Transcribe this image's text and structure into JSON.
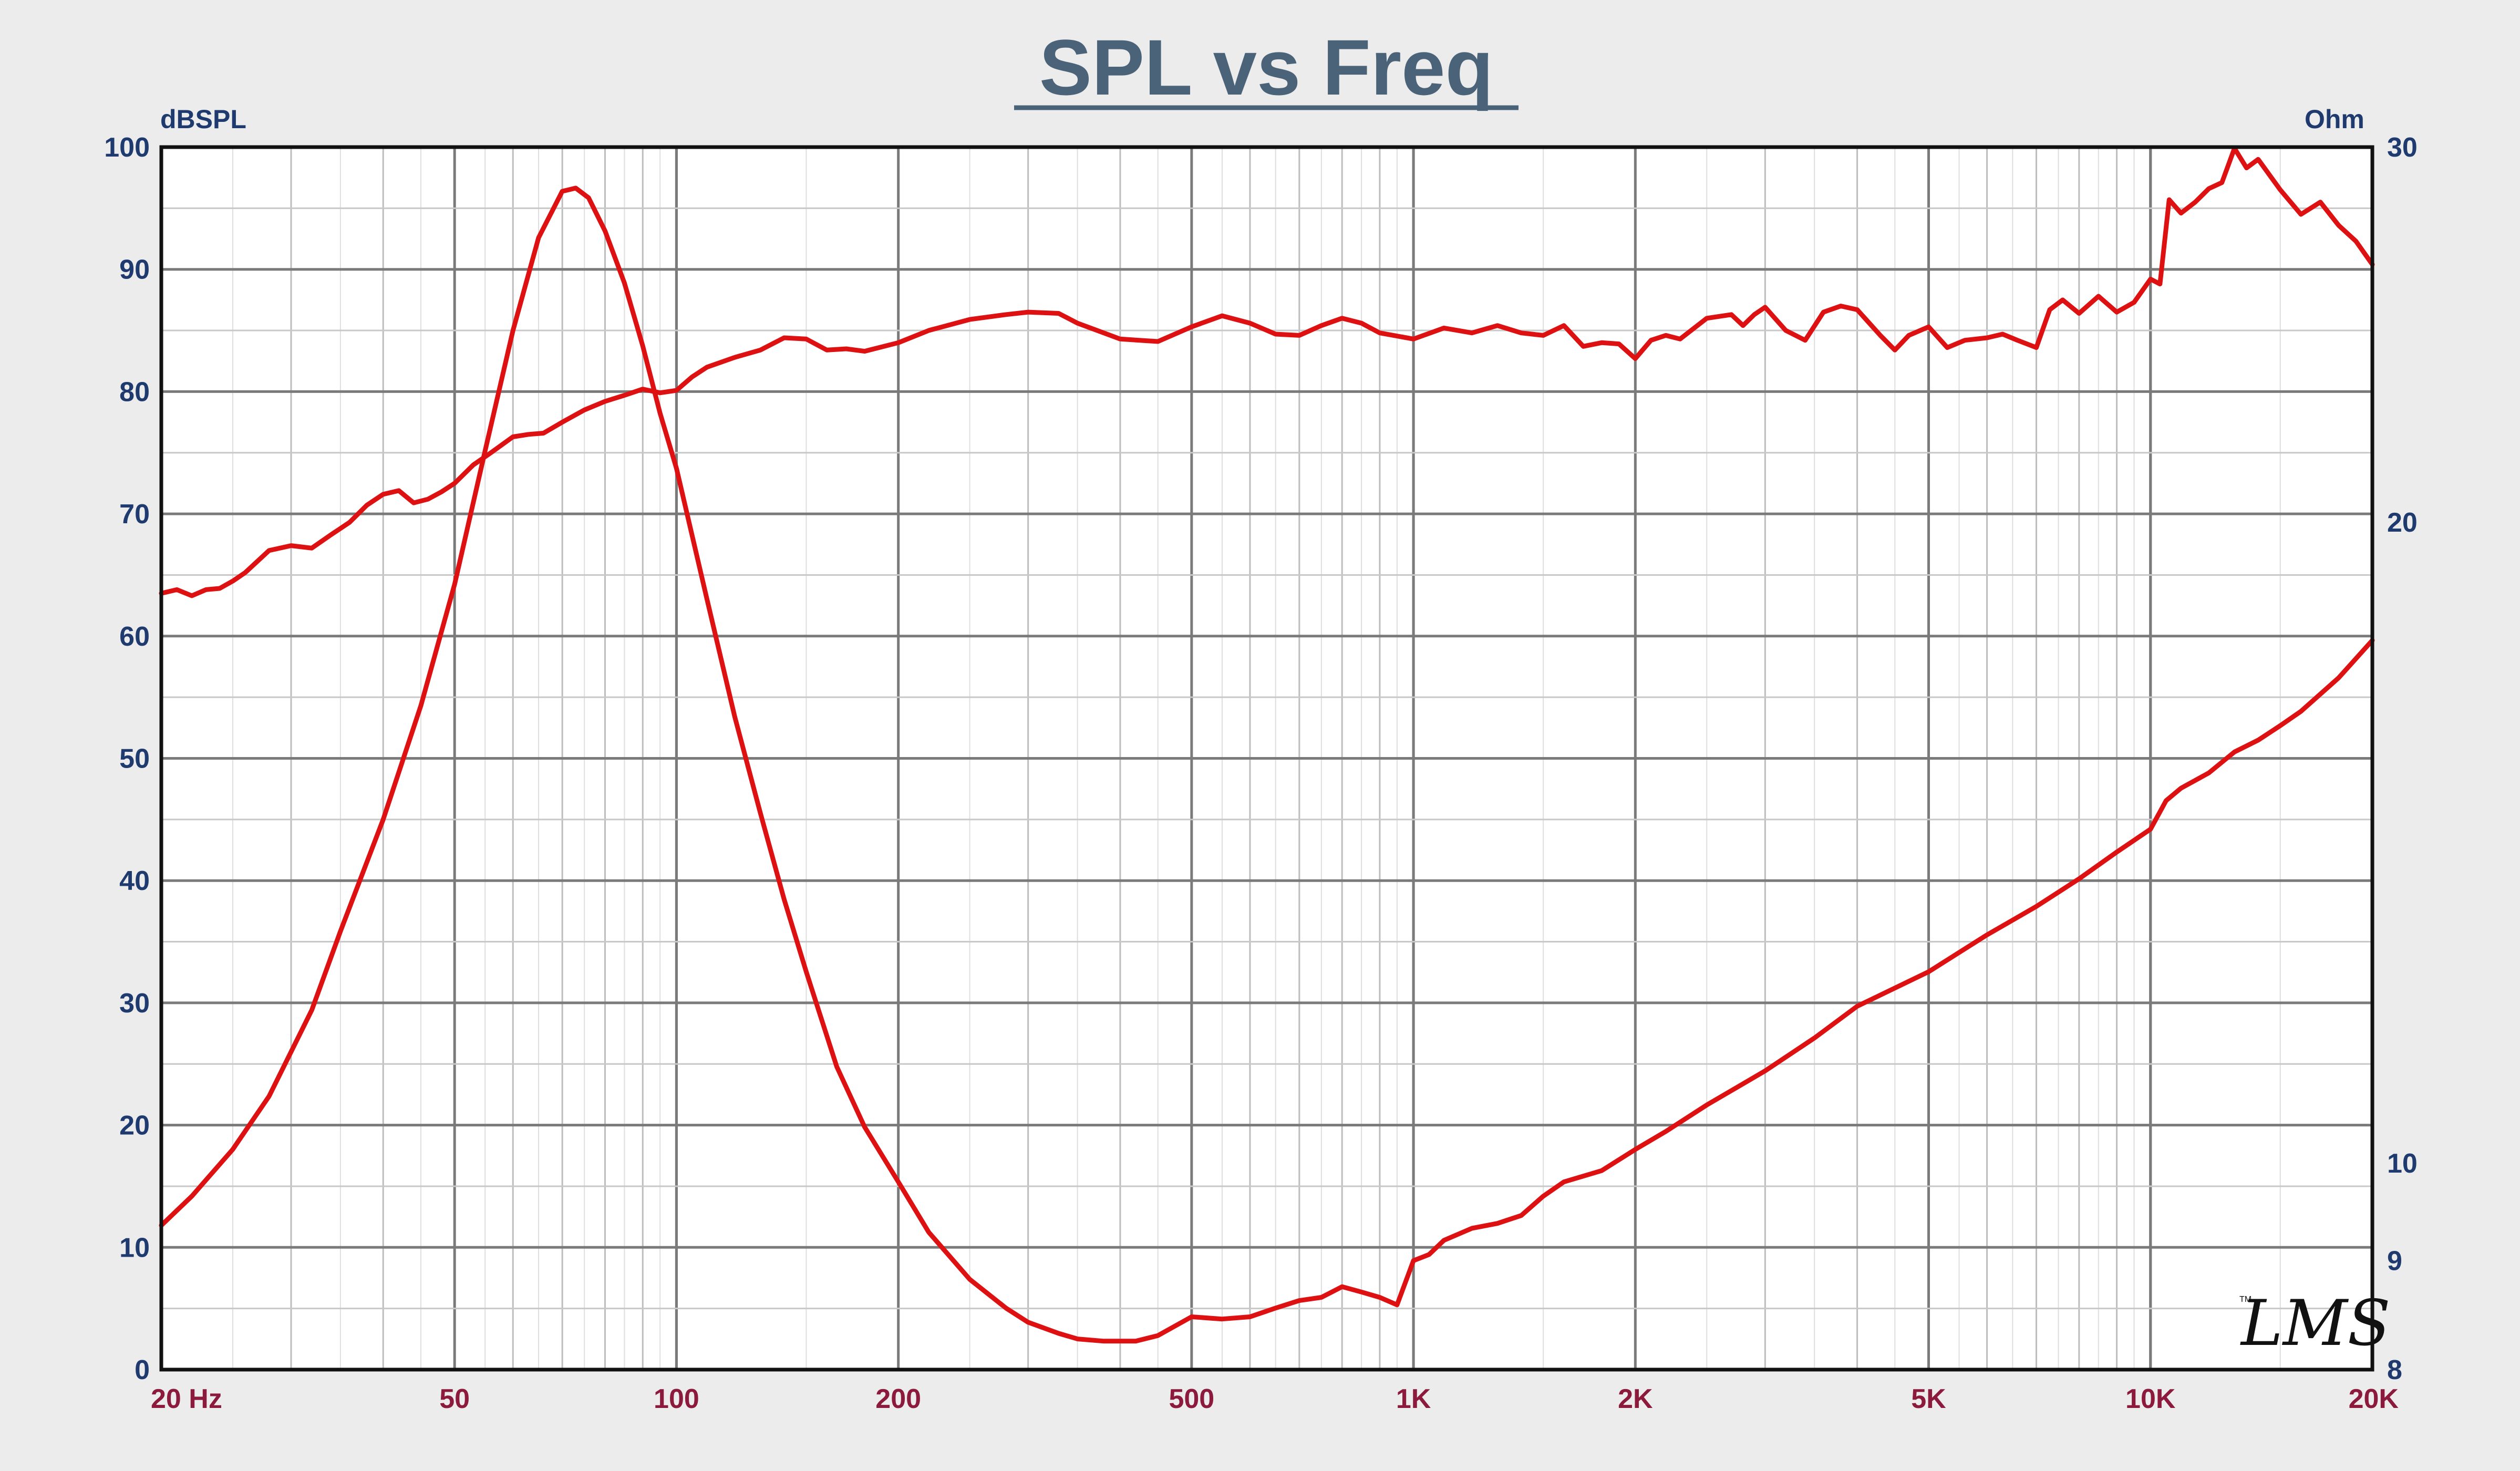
{
  "chart_data": {
    "type": "line",
    "title": "SPL vs Freq",
    "ylabel_left": "dBSPL",
    "ylabel_right": "Ohm",
    "x_scale": "log",
    "xlim": [
      20,
      20000
    ],
    "ylim_left": [
      0,
      100
    ],
    "ylim_right": [
      8,
      30
    ],
    "y_right_scale": "log",
    "grid": true,
    "left_ticks": [
      "0",
      "10",
      "20",
      "30",
      "40",
      "50",
      "60",
      "70",
      "80",
      "90",
      "100"
    ],
    "right_ticks": [
      {
        "label": "8",
        "value": 8
      },
      {
        "label": "9",
        "value": 9
      },
      {
        "label": "10",
        "value": 10
      },
      {
        "label": "20",
        "value": 20
      },
      {
        "label": "30",
        "value": 30
      }
    ],
    "x_ticks": [
      {
        "label": "20  Hz",
        "value": 20
      },
      {
        "label": "50",
        "value": 50
      },
      {
        "label": "100",
        "value": 100
      },
      {
        "label": "200",
        "value": 200
      },
      {
        "label": "500",
        "value": 500
      },
      {
        "label": "1K",
        "value": 1000
      },
      {
        "label": "2K",
        "value": 2000
      },
      {
        "label": "5K",
        "value": 5000
      },
      {
        "label": "10K",
        "value": 10000
      },
      {
        "label": "20K",
        "value": 20000
      }
    ],
    "series": [
      {
        "axis": "left",
        "color": "#dd1111",
        "x": [
          20,
          21,
          22,
          23,
          24,
          25,
          26,
          28,
          30,
          32,
          34,
          36,
          38,
          40,
          42,
          44,
          46,
          48,
          50,
          53,
          56,
          60,
          63,
          66,
          70,
          75,
          80,
          85,
          90,
          95,
          100,
          105,
          110,
          120,
          130,
          140,
          150,
          160,
          170,
          180,
          200,
          220,
          250,
          280,
          300,
          330,
          350,
          400,
          450,
          500,
          550,
          600,
          650,
          700,
          750,
          800,
          850,
          900,
          1000,
          1100,
          1200,
          1300,
          1400,
          1500,
          1600,
          1700,
          1800,
          1900,
          2000,
          2100,
          2200,
          2300,
          2500,
          2700,
          2800,
          2900,
          3000,
          3200,
          3400,
          3600,
          3800,
          4000,
          4300,
          4500,
          4700,
          5000,
          5300,
          5600,
          6000,
          6300,
          6600,
          7000,
          7300,
          7600,
          8000,
          8500,
          9000,
          9500,
          10000,
          10300,
          10600,
          11000,
          11500,
          12000,
          12500,
          13000,
          13500,
          14000,
          15000,
          16000,
          17000,
          18000,
          19000,
          20000
        ],
        "values": [
          63.5,
          63.8,
          63.3,
          63.8,
          63.9,
          64.5,
          65.2,
          67,
          67.4,
          67.2,
          68.3,
          69.3,
          70.7,
          71.6,
          71.9,
          70.9,
          71.2,
          71.8,
          72.5,
          74,
          75,
          76.3,
          76.5,
          76.6,
          77.5,
          78.5,
          79.2,
          79.7,
          80.2,
          79.9,
          80.1,
          81.2,
          82,
          82.8,
          83.4,
          84.4,
          84.3,
          83.4,
          83.5,
          83.3,
          84,
          85,
          85.9,
          86.3,
          86.5,
          86.4,
          85.6,
          84.3,
          84.1,
          85.3,
          86.2,
          85.6,
          84.7,
          84.6,
          85.4,
          86,
          85.6,
          84.8,
          84.3,
          85.2,
          84.8,
          85.4,
          84.8,
          84.6,
          85.4,
          83.7,
          84,
          83.9,
          82.7,
          84.2,
          84.6,
          84.3,
          86,
          86.3,
          85.4,
          86.3,
          86.9,
          85,
          84.2,
          86.5,
          87,
          86.7,
          84.6,
          83.4,
          84.6,
          85.3,
          83.6,
          84.2,
          84.4,
          84.7,
          84.2,
          83.6,
          86.7,
          87.5,
          86.4,
          87.8,
          86.5,
          87.3,
          89.2,
          88.8,
          95.7,
          94.6,
          95.5,
          96.6,
          97.1,
          99.9,
          98.3,
          99,
          96.5,
          94.5,
          95.5,
          93.6,
          92.3,
          90.4
        ]
      },
      {
        "axis": "right",
        "color": "#dd1111",
        "x": [
          20,
          22,
          25,
          28,
          32,
          35,
          40,
          45,
          50,
          55,
          60,
          65,
          70,
          73,
          76,
          80,
          85,
          90,
          95,
          100,
          110,
          120,
          130,
          140,
          150,
          165,
          180,
          200,
          220,
          250,
          280,
          300,
          330,
          350,
          380,
          420,
          450,
          500,
          550,
          600,
          650,
          700,
          750,
          800,
          850,
          900,
          950,
          1000,
          1050,
          1100,
          1200,
          1300,
          1400,
          1500,
          1600,
          1800,
          2000,
          2200,
          2500,
          3000,
          3500,
          4000,
          5000,
          6000,
          7000,
          8000,
          9000,
          10000,
          10500,
          11000,
          12000,
          13000,
          14000,
          15000,
          16000,
          18000,
          20000
        ],
        "values": [
          9.35,
          9.65,
          10.15,
          10.75,
          11.8,
          12.85,
          14.5,
          16.4,
          18.7,
          21.6,
          24.6,
          27.2,
          28.6,
          28.7,
          28.4,
          27.4,
          25.9,
          24.2,
          22.5,
          21.2,
          18.4,
          16.2,
          14.6,
          13.3,
          12.3,
          11.1,
          10.4,
          9.8,
          9.28,
          8.82,
          8.55,
          8.42,
          8.32,
          8.27,
          8.25,
          8.25,
          8.3,
          8.47,
          8.45,
          8.47,
          8.55,
          8.62,
          8.65,
          8.75,
          8.7,
          8.65,
          8.58,
          9.0,
          9.06,
          9.2,
          9.32,
          9.37,
          9.45,
          9.65,
          9.8,
          9.92,
          10.15,
          10.35,
          10.65,
          11.05,
          11.45,
          11.85,
          12.3,
          12.8,
          13.2,
          13.6,
          14.0,
          14.35,
          14.8,
          15.0,
          15.25,
          15.6,
          15.8,
          16.05,
          16.3,
          16.9,
          17.6
        ]
      }
    ]
  },
  "logo_text": "LMS",
  "logo_tm": "TM"
}
